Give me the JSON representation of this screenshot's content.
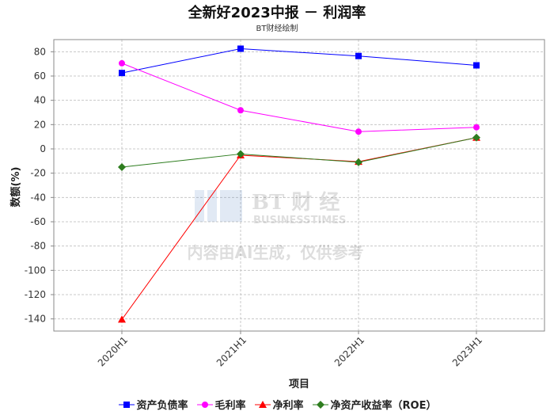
{
  "chart_data": {
    "type": "line",
    "title": "全新好2023中报 － 利润率",
    "subtitle": "BT财经绘制",
    "xlabel": "项目",
    "ylabel": "数额(%)",
    "categories": [
      "2020H1",
      "2021H1",
      "2022H1",
      "2023H1"
    ],
    "ylim": [
      -150,
      90
    ],
    "yticks": [
      80,
      60,
      40,
      20,
      0,
      -20,
      -40,
      -60,
      -80,
      -100,
      -120,
      -140
    ],
    "grid": true,
    "legend_position": "bottom",
    "series": [
      {
        "name": "资产负债率",
        "color": "#0000ff",
        "marker": "square",
        "values": [
          62.5,
          82.5,
          76.5,
          68.8
        ]
      },
      {
        "name": "毛利率",
        "color": "#ff00ff",
        "marker": "circle",
        "values": [
          70.5,
          31.8,
          14.2,
          17.8
        ]
      },
      {
        "name": "净利率",
        "color": "#ff0000",
        "marker": "triangle",
        "values": [
          -140.5,
          -5.2,
          -10.5,
          9.3
        ]
      },
      {
        "name": "净资产收益率（ROE）",
        "color": "#2e7d1f",
        "marker": "diamond",
        "values": [
          -15.0,
          -4.2,
          -11.0,
          9.3
        ]
      }
    ]
  },
  "watermark": {
    "brand": "BT 财 经",
    "brand_sub": "BUSINESSTIMES",
    "notice": "内容由AI生成，仅供参考"
  }
}
